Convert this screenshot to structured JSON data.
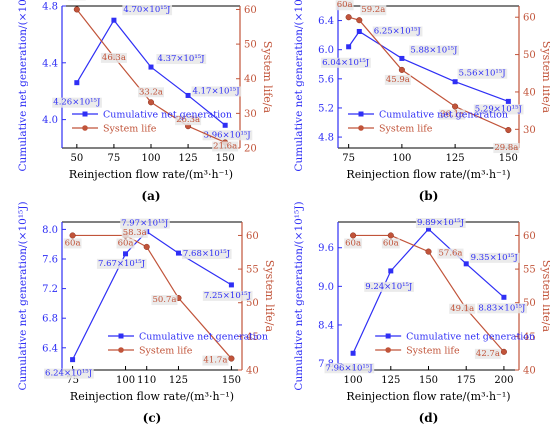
{
  "chart_data": [
    {
      "panel_label": "(a)",
      "type": "line",
      "xlabel": "Reinjection flow rate/(m³·h⁻¹)",
      "ylabel": "Cumulative net generation/(×10¹⁵J)",
      "y2label": "System life/a",
      "x": [
        50,
        75,
        100,
        125,
        150
      ],
      "xlim": [
        40,
        160
      ],
      "ylim": [
        3.8,
        4.8
      ],
      "y2lim": [
        20,
        61
      ],
      "xticks": [
        50,
        75,
        100,
        125,
        150
      ],
      "yticks": [
        4.0,
        4.4,
        4.8
      ],
      "y2ticks": [
        20,
        30,
        40,
        50,
        60
      ],
      "legend_position": "bottom-left",
      "legend_offset": 0,
      "series": [
        {
          "name": "Cumulative net generation",
          "axis": "left",
          "color": "#2f2ff5",
          "marker": "square",
          "values": [
            4.26,
            4.7,
            4.37,
            4.17,
            3.96
          ],
          "labels": [
            "4.26×10¹⁵J",
            "4.70×10¹⁵J",
            "4.37×10¹⁵J",
            "4.17×10¹⁵J",
            "3.96×10¹⁵J"
          ]
        },
        {
          "name": "System life",
          "axis": "right",
          "color": "#c1543a",
          "marker": "circle",
          "values": [
            60,
            46.3,
            33.2,
            26.3,
            21.6
          ],
          "labels": [
            "60a",
            "46.3a",
            "33.2a",
            "26.3a",
            "21.6a"
          ]
        }
      ]
    },
    {
      "panel_label": "(b)",
      "type": "line",
      "xlabel": "Reinjection flow rate/(m³·h⁻¹)",
      "ylabel": "Cumulative net generation/(×10¹⁵J)",
      "y2label": "System life/a",
      "x": [
        75,
        80,
        100,
        125,
        150
      ],
      "xlim": [
        70,
        155
      ],
      "ylim": [
        4.65,
        6.6
      ],
      "y2lim": [
        25,
        63
      ],
      "xticks": [
        75,
        100,
        125,
        150
      ],
      "yticks": [
        4.8,
        5.2,
        5.6,
        6.0,
        6.4
      ],
      "y2ticks": [
        30,
        40,
        50,
        60
      ],
      "legend_position": "bottom-left",
      "legend_offset": 0,
      "series": [
        {
          "name": "Cumulative net generation",
          "axis": "left",
          "color": "#2f2ff5",
          "marker": "square",
          "values": [
            6.04,
            6.25,
            5.88,
            5.56,
            5.29
          ],
          "labels": [
            "6.04×10¹⁵J",
            "6.25×10¹⁵J",
            "5.88×10¹⁵J",
            "5.56×10¹⁵J",
            "5.29×10¹⁵J"
          ]
        },
        {
          "name": "System life",
          "axis": "right",
          "color": "#c1543a",
          "marker": "circle",
          "values": [
            60,
            59.2,
            45.9,
            36.1,
            29.8
          ],
          "labels": [
            "60a",
            "59.2a",
            "45.9a",
            "36.1a",
            "29.8a"
          ]
        }
      ]
    },
    {
      "panel_label": "(c)",
      "type": "line",
      "xlabel": "Reinjection flow rate/(m³·h⁻¹)",
      "ylabel": "Cumulative net generation/(×10¹⁵J)",
      "y2label": "System life/a",
      "x": [
        75,
        100,
        110,
        125,
        150
      ],
      "xlim": [
        70,
        155
      ],
      "ylim": [
        6.1,
        8.1
      ],
      "y2lim": [
        40,
        62
      ],
      "xticks": [
        75,
        100,
        110,
        125,
        150
      ],
      "yticks": [
        6.4,
        6.8,
        7.2,
        7.6,
        8.0
      ],
      "y2ticks": [
        40,
        45,
        50,
        55,
        60
      ],
      "legend_position": "bottom-left",
      "legend_offset": 0.2,
      "series": [
        {
          "name": "Cumulative net generation",
          "axis": "left",
          "color": "#2f2ff5",
          "marker": "square",
          "values": [
            6.24,
            7.67,
            7.97,
            7.68,
            7.25
          ],
          "labels": [
            "6.24×10¹⁵J",
            "7.67×10¹⁵J",
            "7.97×10¹⁵J",
            "7.68×10¹⁵J",
            "7.25×10¹⁵J"
          ]
        },
        {
          "name": "System life",
          "axis": "right",
          "color": "#c1543a",
          "marker": "circle",
          "values": [
            60,
            60,
            58.3,
            50.7,
            41.7
          ],
          "labels": [
            "60a",
            "60a",
            "58.3a",
            "50.7a",
            "41.7a"
          ]
        }
      ]
    },
    {
      "panel_label": "(d)",
      "type": "line",
      "xlabel": "Reinjection flow rate/(m³·h⁻¹)",
      "ylabel": "Cumulative net generation/(×10¹⁵J)",
      "y2label": "System life/a",
      "x": [
        100,
        125,
        150,
        175,
        200
      ],
      "xlim": [
        90,
        210
      ],
      "ylim": [
        7.7,
        10.0
      ],
      "y2lim": [
        40,
        62
      ],
      "xticks": [
        100,
        125,
        150,
        175,
        200
      ],
      "yticks": [
        7.8,
        8.4,
        9.0,
        9.6
      ],
      "y2ticks": [
        40,
        45,
        50,
        55,
        60
      ],
      "legend_position": "bottom-left",
      "legend_offset": 0.15,
      "series": [
        {
          "name": "Cumulative net generation",
          "axis": "left",
          "color": "#2f2ff5",
          "marker": "square",
          "values": [
            7.96,
            9.24,
            9.89,
            9.35,
            8.83
          ],
          "labels": [
            "7.96×10¹⁵J",
            "9.24×10¹⁵J",
            "9.89×10¹⁵J",
            "9.35×10¹⁵J",
            "8.83×10¹⁵J"
          ]
        },
        {
          "name": "System life",
          "axis": "right",
          "color": "#c1543a",
          "marker": "circle",
          "values": [
            60,
            60,
            57.6,
            49.1,
            42.7
          ],
          "labels": [
            "60a",
            "60a",
            "57.6a",
            "49.1a",
            "42.7a"
          ]
        }
      ]
    }
  ]
}
